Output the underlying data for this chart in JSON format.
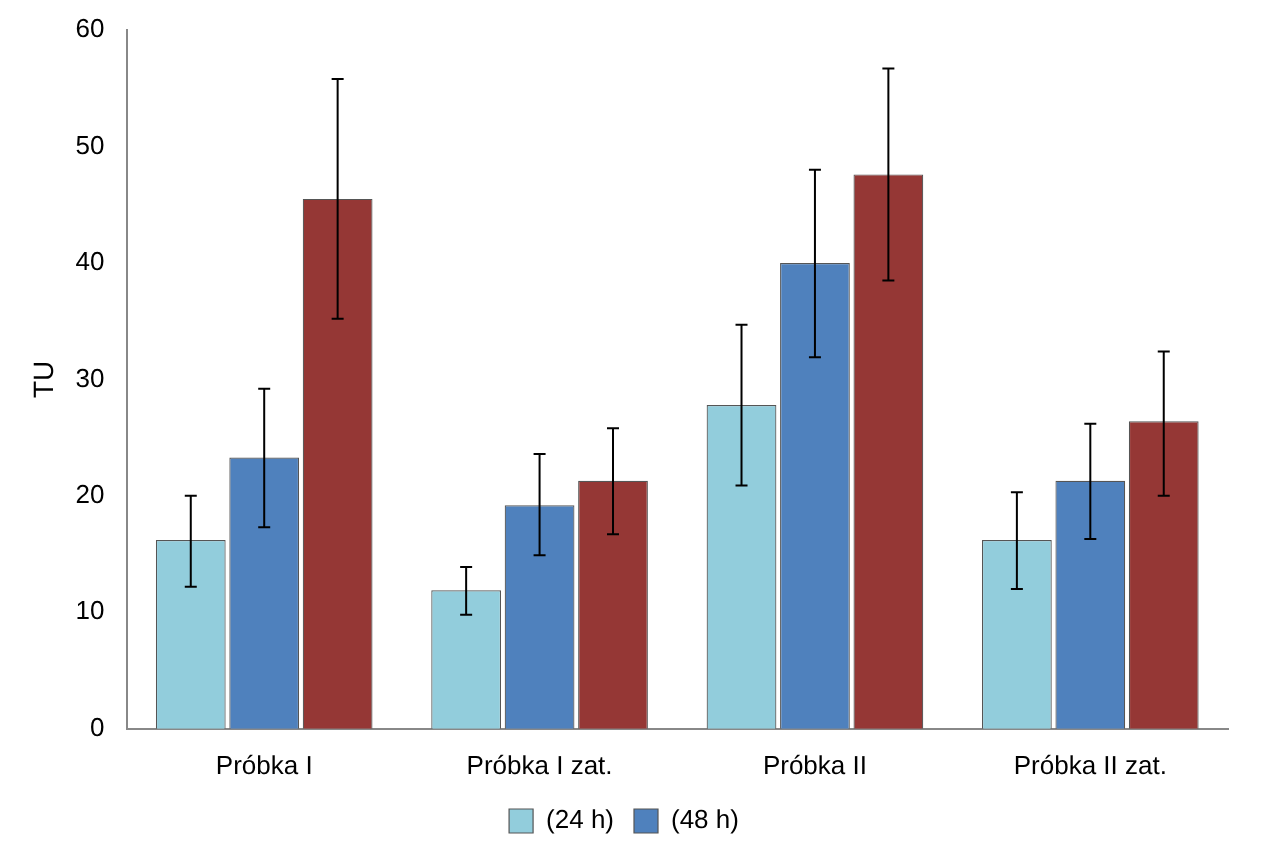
{
  "chart_data": {
    "type": "bar",
    "ylabel": "TU",
    "categories": [
      "Próbka I",
      "Próbka I zat.",
      "Próbka II",
      "Próbka II zat."
    ],
    "series": [
      {
        "name": "(24 h)",
        "color": "#92cddc",
        "values": [
          16.2,
          11.9,
          27.8,
          16.2
        ],
        "errors": [
          [
            12.2,
            20
          ],
          [
            9.8,
            13.9
          ],
          [
            20.9,
            34.7
          ],
          [
            12,
            20.3
          ]
        ]
      },
      {
        "name": "(48 h)",
        "color": "#4f81bd",
        "values": [
          23.3,
          19.2,
          40,
          21.3
        ],
        "errors": [
          [
            17.3,
            29.2
          ],
          [
            14.9,
            23.6
          ],
          [
            31.9,
            48
          ],
          [
            16.3,
            26.2
          ]
        ]
      },
      {
        "color": "#953735",
        "values": [
          45.5,
          21.3,
          47.6,
          26.4
        ],
        "errors": [
          [
            35.2,
            55.8
          ],
          [
            16.7,
            25.8
          ],
          [
            38.5,
            56.7
          ],
          [
            20,
            32.4
          ]
        ]
      }
    ],
    "ylim": [
      0,
      60
    ],
    "yticks": [
      0,
      10,
      20,
      30,
      40,
      50,
      60
    ],
    "grid": false,
    "legend": "bottom"
  }
}
